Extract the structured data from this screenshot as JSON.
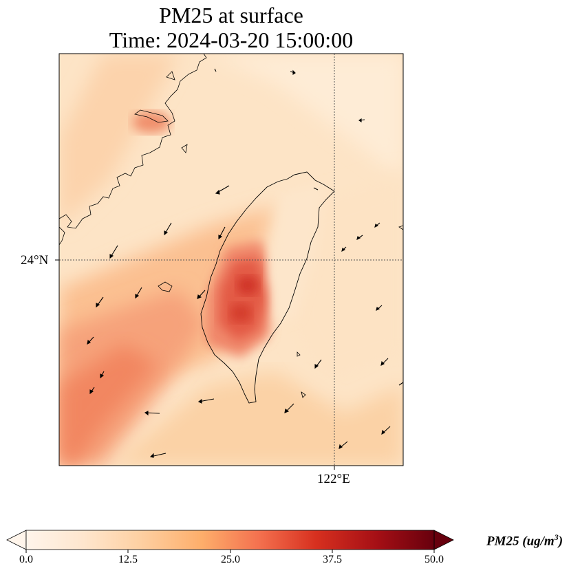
{
  "title_line1": "PM25 at surface",
  "title_line2": "Time: 2024-03-20 15:00:00",
  "axes": {
    "lat_tick": "24°N",
    "lon_tick": "122°E"
  },
  "colorbar": {
    "label_main": "PM25 (ug/m",
    "label_exp": "3",
    "label_end": ")",
    "min": 0,
    "max": 50,
    "ticks": [
      "0.0",
      "12.5",
      "25.0",
      "37.5",
      "50.0"
    ],
    "colormap": [
      "#fff5eb",
      "#fee6ce",
      "#fdd0a2",
      "#fdae6b",
      "#f4714f",
      "#d7301f",
      "#a50f15",
      "#67000d"
    ]
  },
  "colors": {
    "land_outline": "#000000",
    "gridline": "#555555"
  }
}
